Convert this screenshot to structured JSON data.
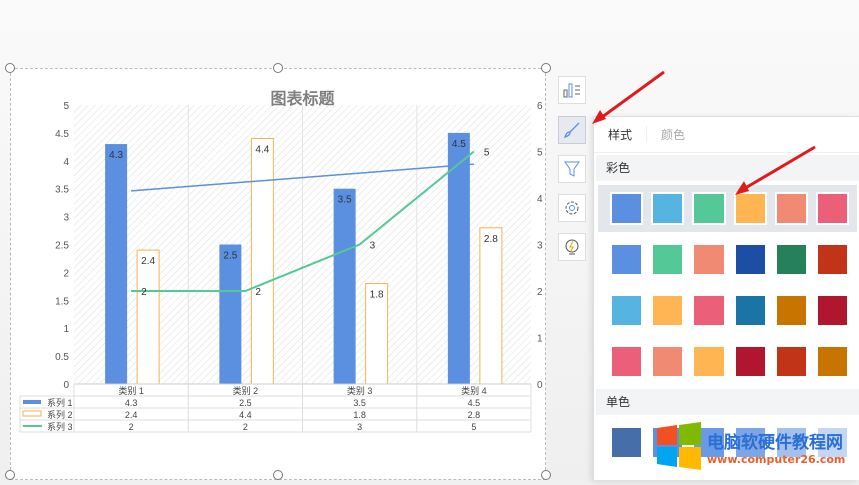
{
  "chart_data": {
    "type": "bar",
    "title": "图表标题",
    "categories": [
      "类别 1",
      "类别 2",
      "类别 3",
      "类别 4"
    ],
    "series": [
      {
        "name": "系列 1",
        "type": "bar",
        "values": [
          4.3,
          2.5,
          3.5,
          4.5
        ],
        "color": "#5b8fe0",
        "trendline": "linear"
      },
      {
        "name": "系列 2",
        "type": "bar",
        "values": [
          2.4,
          4.4,
          1.8,
          2.8
        ],
        "color": "#ffffff",
        "border": "#f5b350"
      },
      {
        "name": "系列 3",
        "type": "line",
        "axis": "secondary",
        "values": [
          2,
          2,
          3,
          5
        ],
        "color": "#55c898"
      }
    ],
    "ylim": [
      0,
      5
    ],
    "yticks": [
      "0",
      "0.5",
      "1",
      "1.5",
      "2",
      "2.5",
      "3",
      "3.5",
      "4",
      "4.5",
      "5"
    ],
    "y2lim": [
      0,
      6
    ],
    "y2ticks": [
      "0",
      "1",
      "2",
      "3",
      "4",
      "5",
      "6"
    ],
    "data_table": true,
    "trendline_color": "#5b8fe0"
  },
  "toolbar": {
    "icons": [
      "chart-elements-icon",
      "style-brush-icon",
      "filter-icon",
      "settings-icon",
      "lightbulb-icon"
    ]
  },
  "panel": {
    "tabs": [
      "样式",
      "颜色"
    ],
    "colorful_label": "彩色",
    "mono_label": "单色",
    "colorful_rows": [
      [
        "#5b8fe0",
        "#56b4e0",
        "#55c898",
        "#ffb552",
        "#f08a72",
        "#ec5f78"
      ],
      [
        "#5b8fe0",
        "#55c898",
        "#f08a72",
        "#1c4fa3",
        "#26805a",
        "#c23418"
      ],
      [
        "#56b4e0",
        "#ffb552",
        "#ec5f78",
        "#1b74a6",
        "#c87400",
        "#b0172f"
      ],
      [
        "#ec5f78",
        "#f08a72",
        "#ffb552",
        "#b0172f",
        "#c23418",
        "#c87400"
      ]
    ],
    "mono_row": [
      "#466ea8",
      "#5b8fe0",
      "#6a9ae3",
      "#7da6e6",
      "#a3c0ee",
      "#c3d6f4"
    ]
  },
  "watermark": {
    "text": "电脑软硬件教程网",
    "url": "www.computer26.com"
  }
}
